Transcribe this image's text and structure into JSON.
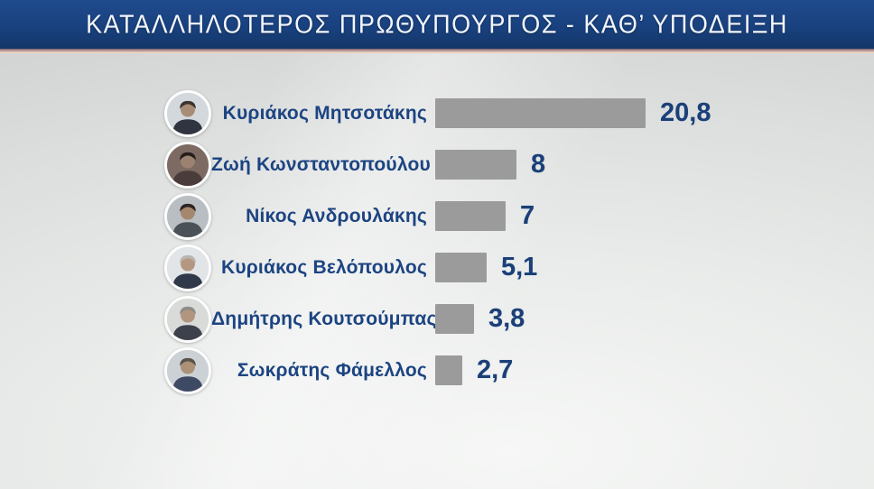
{
  "header": {
    "title": "ΚΑΤΑΛΛΗΛΟΤΕΡΟΣ ΠΡΩΘΥΠΟΥΡΓΟΣ - ΚΑΘ’ ΥΠΟΔΕΙΞΗ",
    "bg_color": "#19417f",
    "accent_strip_top": "#7d5f6e",
    "accent_strip_bottom": "#eed3c2",
    "text_color": "#f2f6fc"
  },
  "chart_data": {
    "type": "bar",
    "orientation": "horizontal",
    "title": "ΚΑΤΑΛΛΗΛΟΤΕΡΟΣ ΠΡΩΘΥΠΟΥΡΓΟΣ - ΚΑΘ’ ΥΠΟΔΕΙΞΗ",
    "categories": [
      "Κυριάκος Μητσοτάκης",
      "Ζωή Κωνσταντοπούλου",
      "Νίκος Ανδρουλάκης",
      "Κυριάκος Βελόπουλος",
      "Δημήτρης Κουτσούμπας",
      "Σωκράτης Φάμελλος"
    ],
    "values": [
      20.8,
      8,
      7,
      5.1,
      3.8,
      2.7
    ],
    "value_labels": [
      "20,8",
      "8",
      "7",
      "5,1",
      "3,8",
      "2,7"
    ],
    "bar_color": "#9b9b9b",
    "name_color": "#1c4482",
    "value_color": "#1b3f77",
    "xlim": [
      0,
      24
    ],
    "grid": false,
    "legend": false,
    "avatars": [
      {
        "bg": "#d3d8dd",
        "hair": "#3a332e",
        "skin": "#a88c76",
        "body": "#2f3440"
      },
      {
        "bg": "#7d6a63",
        "hair": "#241d1b",
        "skin": "#9c8270",
        "body": "#4a3c3a"
      },
      {
        "bg": "#b9bec3",
        "hair": "#2b2522",
        "skin": "#a5876f",
        "body": "#4a5258"
      },
      {
        "bg": "#e2e5e8",
        "hair": "#b9b6b1",
        "skin": "#b59781",
        "body": "#30394a"
      },
      {
        "bg": "#d8dbd8",
        "hair": "#8f8c88",
        "skin": "#b2957e",
        "body": "#3c414b"
      },
      {
        "bg": "#ccd1d6",
        "hair": "#5a5248",
        "skin": "#ad9078",
        "body": "#3e4a63"
      }
    ]
  }
}
